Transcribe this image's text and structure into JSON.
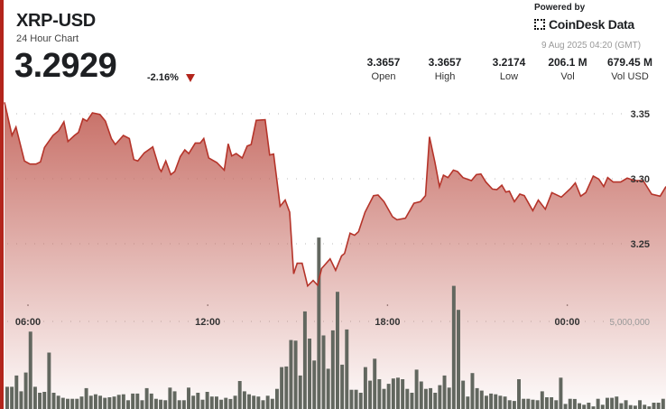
{
  "header": {
    "symbol": "XRP-USD",
    "subtitle": "24 Hour Chart",
    "price": "3.2929",
    "change": "-2.16%",
    "change_direction": "down",
    "timestamp": "9 Aug 2025 04:20 (GMT)"
  },
  "brand": {
    "powered_by": "Powered by",
    "name": "CoinDesk Data"
  },
  "stats": [
    {
      "value": "3.3657",
      "label": "Open"
    },
    {
      "value": "3.3657",
      "label": "High"
    },
    {
      "value": "3.2174",
      "label": "Low"
    },
    {
      "value": "206.1 M",
      "label": "Vol"
    },
    {
      "value": "679.45 M",
      "label": "Vol USD"
    }
  ],
  "colors": {
    "accent": "#b3251c",
    "line": "#b5342a",
    "volume": "#62675f"
  },
  "chart_data": {
    "type": "line",
    "title": "",
    "ylim": [
      3.2,
      3.36
    ],
    "y_ticks": [
      {
        "value": 3.35,
        "label": "3.35"
      },
      {
        "value": 3.3,
        "label": "3.30"
      },
      {
        "value": 3.25,
        "label": "3.25"
      }
    ],
    "x_ticks": [
      "06:00",
      "12:00",
      "18:00",
      "00:00"
    ],
    "volume_tick": {
      "value": 5000000,
      "label": "5,000,000"
    },
    "grid": true,
    "price_series": [
      [
        "05:12",
        3.3588
      ],
      [
        "05:28",
        3.3333
      ],
      [
        "05:36",
        3.3398
      ],
      [
        "05:53",
        3.3137
      ],
      [
        "06:04",
        3.3113
      ],
      [
        "06:16",
        3.3113
      ],
      [
        "06:25",
        3.313
      ],
      [
        "06:33",
        3.3241
      ],
      [
        "06:50",
        3.3333
      ],
      [
        "07:01",
        3.3368
      ],
      [
        "07:12",
        3.3438
      ],
      [
        "07:20",
        3.3287
      ],
      [
        "07:33",
        3.3333
      ],
      [
        "07:41",
        3.3356
      ],
      [
        "07:50",
        3.3461
      ],
      [
        "07:58",
        3.3444
      ],
      [
        "08:09",
        3.3507
      ],
      [
        "08:24",
        3.3495
      ],
      [
        "08:35",
        3.3444
      ],
      [
        "08:47",
        3.331
      ],
      [
        "08:55",
        3.3264
      ],
      [
        "09:11",
        3.3333
      ],
      [
        "09:23",
        3.331
      ],
      [
        "09:32",
        3.3148
      ],
      [
        "09:40",
        3.3137
      ],
      [
        "09:53",
        3.3199
      ],
      [
        "10:10",
        3.3245
      ],
      [
        "10:23",
        3.3079
      ],
      [
        "10:27",
        3.3056
      ],
      [
        "10:36",
        3.3137
      ],
      [
        "10:46",
        3.3032
      ],
      [
        "10:54",
        3.3056
      ],
      [
        "11:05",
        3.3171
      ],
      [
        "11:14",
        3.3222
      ],
      [
        "11:22",
        3.3194
      ],
      [
        "11:35",
        3.3275
      ],
      [
        "11:45",
        3.3275
      ],
      [
        "11:52",
        3.331
      ],
      [
        "12:02",
        3.316
      ],
      [
        "12:18",
        3.3125
      ],
      [
        "12:33",
        3.3067
      ],
      [
        "12:41",
        3.3269
      ],
      [
        "12:48",
        3.3176
      ],
      [
        "12:57",
        3.3194
      ],
      [
        "13:09",
        3.316
      ],
      [
        "13:19",
        3.3252
      ],
      [
        "13:27",
        3.3264
      ],
      [
        "13:37",
        3.3449
      ],
      [
        "13:55",
        3.3454
      ],
      [
        "14:04",
        3.3183
      ],
      [
        "14:12",
        3.319
      ],
      [
        "14:25",
        3.2789
      ],
      [
        "14:35",
        3.2836
      ],
      [
        "14:44",
        3.2743
      ],
      [
        "14:52",
        3.2269
      ],
      [
        "14:59",
        3.235
      ],
      [
        "15:09",
        3.235
      ],
      [
        "15:20",
        3.2176
      ],
      [
        "15:31",
        3.2218
      ],
      [
        "15:40",
        3.2181
      ],
      [
        "15:48",
        3.231
      ],
      [
        "16:05",
        3.2384
      ],
      [
        "16:16",
        3.2296
      ],
      [
        "16:28",
        3.2407
      ],
      [
        "16:34",
        3.2426
      ],
      [
        "16:45",
        3.2581
      ],
      [
        "16:54",
        3.2565
      ],
      [
        "17:02",
        3.2593
      ],
      [
        "17:15",
        3.2743
      ],
      [
        "17:32",
        3.287
      ],
      [
        "17:41",
        3.2875
      ],
      [
        "17:53",
        3.2824
      ],
      [
        "18:10",
        3.2708
      ],
      [
        "18:19",
        3.2685
      ],
      [
        "18:36",
        3.2697
      ],
      [
        "18:53",
        3.2812
      ],
      [
        "19:06",
        3.2824
      ],
      [
        "19:16",
        3.287
      ],
      [
        "19:24",
        3.3322
      ],
      [
        "19:35",
        3.3125
      ],
      [
        "19:44",
        3.294
      ],
      [
        "19:52",
        3.3028
      ],
      [
        "20:01",
        3.3009
      ],
      [
        "20:12",
        3.3067
      ],
      [
        "20:20",
        3.3056
      ],
      [
        "20:31",
        3.3009
      ],
      [
        "20:48",
        3.2986
      ],
      [
        "20:58",
        3.3032
      ],
      [
        "21:07",
        3.3037
      ],
      [
        "21:17",
        3.2975
      ],
      [
        "21:30",
        3.2921
      ],
      [
        "21:39",
        3.2917
      ],
      [
        "21:49",
        3.2951
      ],
      [
        "21:57",
        3.2898
      ],
      [
        "22:04",
        3.2905
      ],
      [
        "22:14",
        3.2824
      ],
      [
        "22:25",
        3.2882
      ],
      [
        "22:34",
        3.287
      ],
      [
        "22:51",
        3.2755
      ],
      [
        "23:02",
        3.2836
      ],
      [
        "23:16",
        3.2766
      ],
      [
        "23:29",
        3.2894
      ],
      [
        "23:48",
        3.2859
      ],
      [
        "00:07",
        3.2928
      ],
      [
        "00:16",
        3.2968
      ],
      [
        "00:27",
        3.2866
      ],
      [
        "00:37",
        3.2894
      ],
      [
        "00:52",
        3.3021
      ],
      [
        "01:03",
        3.2998
      ],
      [
        "01:13",
        3.294
      ],
      [
        "01:21",
        3.3009
      ],
      [
        "01:32",
        3.2975
      ],
      [
        "01:47",
        3.2975
      ],
      [
        "02:00",
        3.3005
      ],
      [
        "02:15",
        3.2986
      ],
      [
        "02:32",
        3.2986
      ],
      [
        "02:49",
        3.2882
      ],
      [
        "03:06",
        3.2866
      ],
      [
        "03:17",
        3.294
      ]
    ],
    "volume_millions": [
      1.27,
      1.27,
      1.91,
      1.01,
      2.08,
      4.42,
      1.27,
      0.93,
      0.98,
      3.22,
      0.93,
      0.76,
      0.64,
      0.58,
      0.58,
      0.58,
      0.71,
      1.19,
      0.76,
      0.84,
      0.76,
      0.64,
      0.67,
      0.71,
      0.81,
      0.84,
      0.5,
      0.88,
      0.88,
      0.5,
      1.19,
      0.88,
      0.58,
      0.53,
      0.5,
      1.22,
      1.01,
      0.5,
      0.5,
      1.22,
      0.76,
      0.93,
      0.53,
      0.98,
      0.71,
      0.71,
      0.53,
      0.64,
      0.57,
      0.76,
      1.6,
      1.01,
      0.84,
      0.76,
      0.71,
      0.5,
      0.76,
      0.58,
      1.15,
      2.39,
      2.43,
      3.94,
      3.9,
      1.91,
      5.57,
      4.02,
      2.77,
      9.79,
      4.2,
      2.3,
      4.49,
      6.69,
      2.53,
      4.54,
      1.1,
      1.1,
      0.93,
      2.39,
      1.62,
      2.87,
      1.7,
      1.15,
      1.44,
      1.74,
      1.79,
      1.7,
      1.15,
      0.93,
      2.25,
      1.57,
      1.15,
      1.19,
      0.93,
      1.36,
      1.91,
      1.22,
      7.03,
      5.66,
      1.62,
      0.71,
      2.05,
      1.19,
      1.05,
      0.76,
      0.88,
      0.84,
      0.76,
      0.71,
      0.5,
      0.46,
      1.7,
      0.58,
      0.58,
      0.53,
      0.5,
      1.01,
      0.67,
      0.67,
      0.5,
      1.79,
      0.29,
      0.58,
      0.57,
      0.33,
      0.24,
      0.36,
      0.15,
      0.58,
      0.24,
      0.64,
      0.64,
      0.71,
      0.33,
      0.5,
      0.22,
      0.19,
      0.5,
      0.24,
      0.15,
      0.36,
      0.36,
      0.58
    ]
  }
}
